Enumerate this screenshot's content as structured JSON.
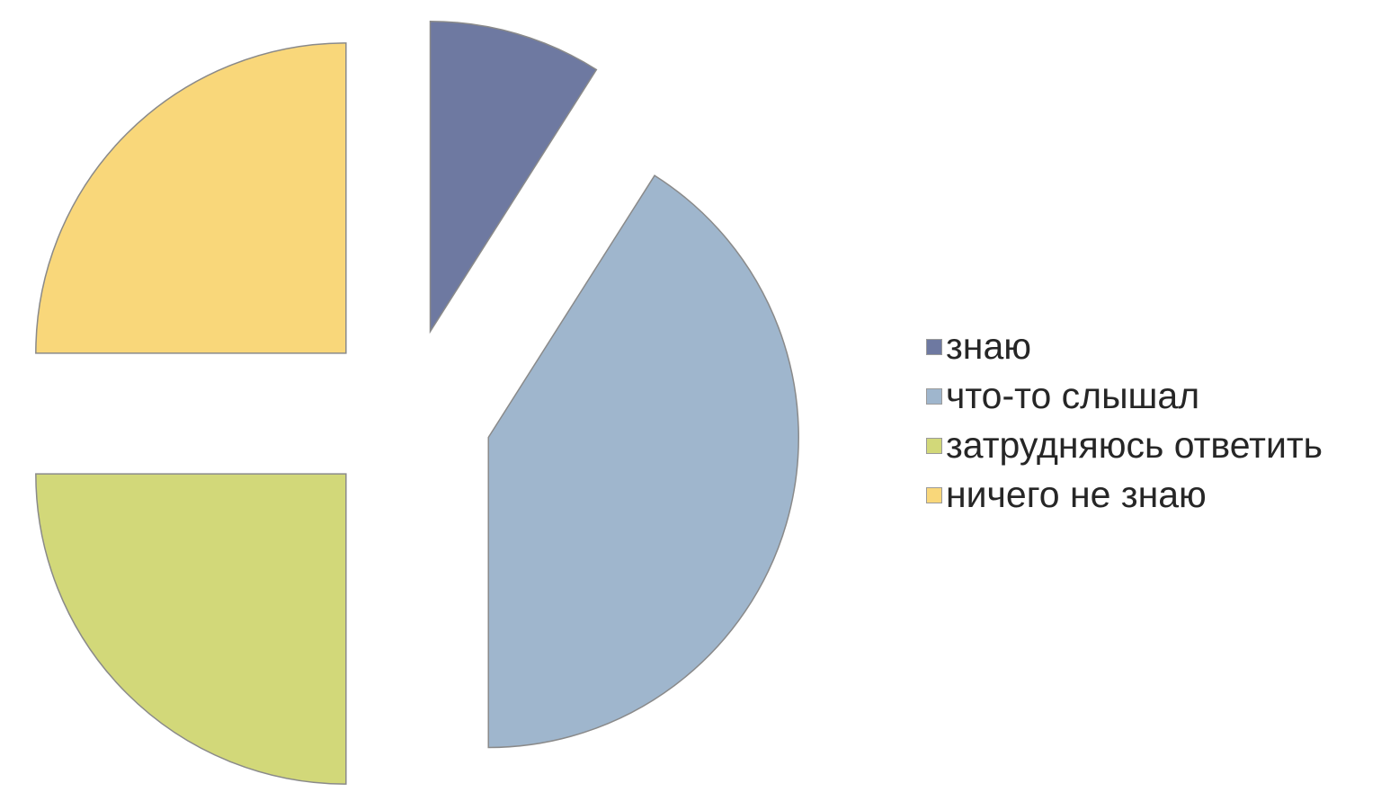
{
  "chart_data": {
    "type": "pie",
    "exploded": true,
    "legend_position": "right",
    "categories": [
      "знаю",
      "что-то слышал",
      "затрудняюсь ответить",
      "ничего не знаю"
    ],
    "values": [
      9,
      41,
      25,
      25
    ],
    "colors": [
      "#6e79a1",
      "#9fb6cd",
      "#d2d879",
      "#f9d77a"
    ]
  }
}
